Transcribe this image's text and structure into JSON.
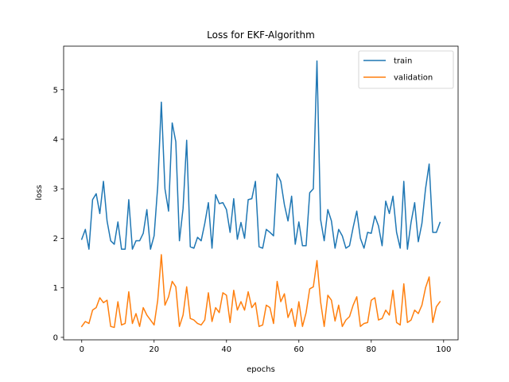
{
  "chart_data": {
    "type": "line",
    "title": "Loss for EKF-Algorithm",
    "xlabel": "epochs",
    "ylabel": "loss",
    "xlim": [
      -5,
      104
    ],
    "ylim": [
      -0.05,
      5.88
    ],
    "xticks": [
      0,
      20,
      40,
      60,
      80,
      100
    ],
    "yticks": [
      0,
      1,
      2,
      3,
      4,
      5
    ],
    "legend_position": "top-right",
    "grid": false,
    "series": [
      {
        "name": "train",
        "color": "#1f77b4",
        "x": [
          0,
          1,
          2,
          3,
          4,
          5,
          6,
          7,
          8,
          9,
          10,
          11,
          12,
          13,
          14,
          15,
          16,
          17,
          18,
          19,
          20,
          21,
          22,
          23,
          24,
          25,
          26,
          27,
          28,
          29,
          30,
          31,
          32,
          33,
          34,
          35,
          36,
          37,
          38,
          39,
          40,
          41,
          42,
          43,
          44,
          45,
          46,
          47,
          48,
          49,
          50,
          51,
          52,
          53,
          54,
          55,
          56,
          57,
          58,
          59,
          60,
          61,
          62,
          63,
          64,
          65,
          66,
          67,
          68,
          69,
          70,
          71,
          72,
          73,
          74,
          75,
          76,
          77,
          78,
          79,
          80,
          81,
          82,
          83,
          84,
          85,
          86,
          87,
          88,
          89,
          90,
          91,
          92,
          93,
          94,
          95,
          96,
          97,
          98,
          99
        ],
        "values": [
          1.98,
          2.18,
          1.78,
          2.78,
          2.9,
          2.5,
          3.15,
          2.35,
          1.95,
          1.88,
          2.33,
          1.78,
          1.78,
          2.78,
          1.78,
          1.95,
          1.95,
          2.1,
          2.58,
          1.78,
          2.05,
          3.05,
          4.75,
          3.0,
          2.55,
          4.33,
          3.95,
          1.95,
          2.6,
          3.98,
          1.83,
          1.8,
          2.02,
          1.95,
          2.3,
          2.72,
          1.8,
          2.88,
          2.7,
          2.72,
          2.58,
          2.12,
          2.8,
          1.98,
          2.32,
          2.0,
          2.78,
          2.8,
          3.15,
          1.83,
          1.8,
          2.18,
          2.12,
          2.05,
          3.3,
          3.15,
          2.68,
          2.35,
          2.85,
          1.88,
          2.33,
          1.85,
          1.85,
          2.92,
          3.0,
          5.58,
          2.38,
          1.95,
          2.58,
          2.35,
          1.8,
          2.18,
          2.05,
          1.8,
          1.85,
          2.22,
          2.55,
          2.0,
          1.8,
          2.12,
          2.1,
          2.45,
          2.25,
          1.85,
          2.75,
          2.5,
          2.85,
          2.12,
          1.8,
          3.15,
          1.78,
          2.32,
          2.72,
          1.93,
          2.3,
          3.0,
          3.5,
          2.12,
          2.12,
          2.32
        ]
      },
      {
        "name": "validation",
        "color": "#ff7f0e",
        "x": [
          0,
          1,
          2,
          3,
          4,
          5,
          6,
          7,
          8,
          9,
          10,
          11,
          12,
          13,
          14,
          15,
          16,
          17,
          18,
          19,
          20,
          21,
          22,
          23,
          24,
          25,
          26,
          27,
          28,
          29,
          30,
          31,
          32,
          33,
          34,
          35,
          36,
          37,
          38,
          39,
          40,
          41,
          42,
          43,
          44,
          45,
          46,
          47,
          48,
          49,
          50,
          51,
          52,
          53,
          54,
          55,
          56,
          57,
          58,
          59,
          60,
          61,
          62,
          63,
          64,
          65,
          66,
          67,
          68,
          69,
          70,
          71,
          72,
          73,
          74,
          75,
          76,
          77,
          78,
          79,
          80,
          81,
          82,
          83,
          84,
          85,
          86,
          87,
          88,
          89,
          90,
          91,
          92,
          93,
          94,
          95,
          96,
          97,
          98,
          99
        ],
        "values": [
          0.22,
          0.32,
          0.28,
          0.55,
          0.6,
          0.8,
          0.7,
          0.75,
          0.22,
          0.2,
          0.72,
          0.25,
          0.28,
          0.92,
          0.28,
          0.48,
          0.22,
          0.6,
          0.45,
          0.35,
          0.25,
          0.75,
          1.67,
          0.65,
          0.82,
          1.13,
          1.02,
          0.22,
          0.45,
          1.02,
          0.38,
          0.35,
          0.28,
          0.25,
          0.35,
          0.9,
          0.32,
          0.6,
          0.5,
          0.9,
          0.85,
          0.3,
          0.95,
          0.55,
          0.72,
          0.55,
          0.92,
          0.6,
          0.7,
          0.22,
          0.25,
          0.65,
          0.6,
          0.28,
          1.13,
          0.72,
          0.88,
          0.4,
          0.58,
          0.22,
          0.72,
          0.22,
          0.5,
          0.98,
          1.02,
          1.55,
          0.72,
          0.22,
          0.85,
          0.75,
          0.33,
          0.65,
          0.22,
          0.35,
          0.42,
          0.65,
          0.82,
          0.22,
          0.28,
          0.3,
          0.75,
          0.8,
          0.35,
          0.38,
          0.55,
          0.45,
          0.95,
          0.3,
          0.25,
          1.08,
          0.3,
          0.35,
          0.55,
          0.48,
          0.65,
          1.0,
          1.22,
          0.3,
          0.62,
          0.72
        ]
      }
    ]
  }
}
